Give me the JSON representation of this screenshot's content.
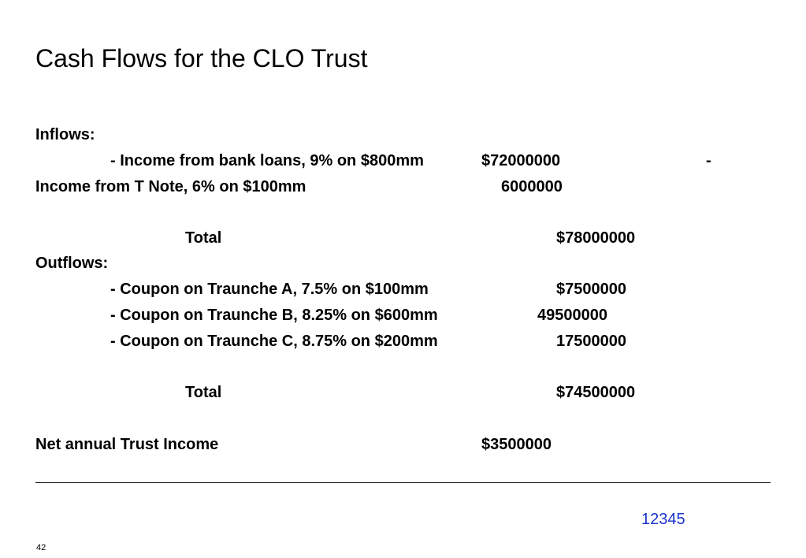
{
  "slide": {
    "title": "Cash Flows for the CLO Trust",
    "inflows": {
      "heading": "Inflows:",
      "line1_label": "- Income from bank loans, 9% on $800mm",
      "line1_value": "$72000000",
      "line1_dash": "-",
      "line2_label": "Income from T Note, 6% on $100mm",
      "line2_value": "6000000",
      "total_label": "Total",
      "total_value": "$78000000"
    },
    "outflows": {
      "heading": "Outflows:",
      "items": [
        {
          "label": "- Coupon on Traunche A, 7.5% on $100mm",
          "value": "$7500000"
        },
        {
          "label": "- Coupon on Traunche B, 8.25% on $600mm",
          "value": "49500000"
        },
        {
          "label": "- Coupon on Traunche C, 8.75% on $200mm",
          "value": "17500000"
        }
      ],
      "total_label": "Total",
      "total_value": "$74500000"
    },
    "net": {
      "label": "Net annual Trust Income",
      "value": "$3500000"
    },
    "footer_link_text": "12345",
    "slide_number": "42",
    "colors": {
      "link": "#1a33cc",
      "text": "#000000",
      "background": "#ffffff"
    }
  }
}
